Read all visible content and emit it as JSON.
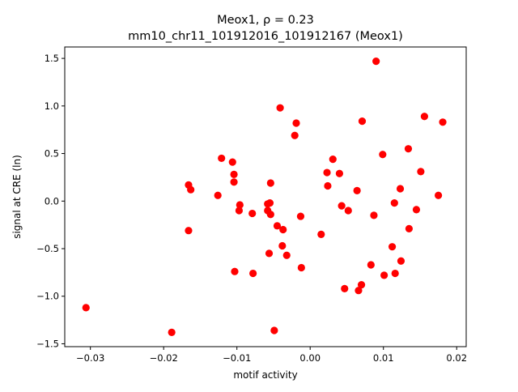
{
  "chart_data": {
    "type": "scatter",
    "title_line1": "Meox1, ρ = 0.23",
    "title_line2": "mm10_chr11_101912016_101912167 (Meox1)",
    "xlabel": "motif activity",
    "ylabel": "signal at CRE (ln)",
    "xlim": [
      -0.0335,
      0.0213
    ],
    "ylim": [
      -1.53,
      1.62
    ],
    "xticks": [
      -0.03,
      -0.02,
      -0.01,
      0.0,
      0.01,
      0.02
    ],
    "xtick_labels": [
      "−0.03",
      "−0.02",
      "−0.01",
      "0.00",
      "0.01",
      "0.02"
    ],
    "yticks": [
      -1.5,
      -1.0,
      -0.5,
      0.0,
      0.5,
      1.0,
      1.5
    ],
    "ytick_labels": [
      "−1.5",
      "−1.0",
      "−0.5",
      "0.0",
      "0.5",
      "1.0",
      "1.5"
    ],
    "marker_color": "#ff0000",
    "grid": false,
    "points": [
      {
        "x": -0.0306,
        "y": -1.12
      },
      {
        "x": -0.0189,
        "y": -1.38
      },
      {
        "x": -0.0166,
        "y": 0.17
      },
      {
        "x": -0.0163,
        "y": 0.12
      },
      {
        "x": -0.0166,
        "y": -0.31
      },
      {
        "x": -0.0126,
        "y": 0.06
      },
      {
        "x": -0.0121,
        "y": 0.45
      },
      {
        "x": -0.0106,
        "y": 0.41
      },
      {
        "x": -0.0104,
        "y": 0.28
      },
      {
        "x": -0.0104,
        "y": 0.2
      },
      {
        "x": -0.0103,
        "y": -0.74
      },
      {
        "x": -0.0096,
        "y": -0.04
      },
      {
        "x": -0.0097,
        "y": -0.1
      },
      {
        "x": -0.0079,
        "y": -0.13
      },
      {
        "x": -0.0078,
        "y": -0.76
      },
      {
        "x": -0.0058,
        "y": -0.03
      },
      {
        "x": -0.0055,
        "y": -0.02
      },
      {
        "x": -0.0058,
        "y": -0.1
      },
      {
        "x": -0.0054,
        "y": -0.14
      },
      {
        "x": -0.0054,
        "y": 0.19
      },
      {
        "x": -0.0056,
        "y": -0.55
      },
      {
        "x": -0.0045,
        "y": -0.26
      },
      {
        "x": -0.0041,
        "y": 0.98
      },
      {
        "x": -0.0037,
        "y": -0.3
      },
      {
        "x": -0.0038,
        "y": -0.47
      },
      {
        "x": -0.0032,
        "y": -0.57
      },
      {
        "x": -0.0021,
        "y": 0.69
      },
      {
        "x": -0.0019,
        "y": 0.82
      },
      {
        "x": -0.0013,
        "y": -0.16
      },
      {
        "x": -0.0012,
        "y": -0.7
      },
      {
        "x": -0.0049,
        "y": -1.36
      },
      {
        "x": 0.0015,
        "y": -0.35
      },
      {
        "x": 0.0023,
        "y": 0.3
      },
      {
        "x": 0.0024,
        "y": 0.16
      },
      {
        "x": 0.0031,
        "y": 0.44
      },
      {
        "x": 0.004,
        "y": 0.29
      },
      {
        "x": 0.0043,
        "y": -0.05
      },
      {
        "x": 0.0047,
        "y": -0.92
      },
      {
        "x": 0.0052,
        "y": -0.1
      },
      {
        "x": 0.0064,
        "y": 0.11
      },
      {
        "x": 0.0066,
        "y": -0.94
      },
      {
        "x": 0.007,
        "y": -0.88
      },
      {
        "x": 0.0071,
        "y": 0.84
      },
      {
        "x": 0.0083,
        "y": -0.67
      },
      {
        "x": 0.0087,
        "y": -0.15
      },
      {
        "x": 0.009,
        "y": 1.47
      },
      {
        "x": 0.0099,
        "y": 0.49
      },
      {
        "x": 0.0101,
        "y": -0.78
      },
      {
        "x": 0.0112,
        "y": -0.48
      },
      {
        "x": 0.0115,
        "y": -0.02
      },
      {
        "x": 0.0116,
        "y": -0.76
      },
      {
        "x": 0.0123,
        "y": 0.13
      },
      {
        "x": 0.0124,
        "y": -0.63
      },
      {
        "x": 0.0134,
        "y": 0.55
      },
      {
        "x": 0.0135,
        "y": -0.29
      },
      {
        "x": 0.0145,
        "y": -0.09
      },
      {
        "x": 0.0151,
        "y": 0.31
      },
      {
        "x": 0.0156,
        "y": 0.89
      },
      {
        "x": 0.0175,
        "y": 0.06
      },
      {
        "x": 0.0181,
        "y": 0.83
      }
    ]
  }
}
